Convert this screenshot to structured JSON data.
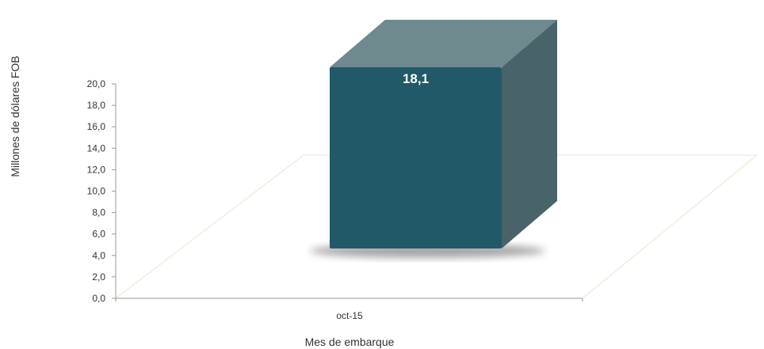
{
  "chart_data": {
    "type": "bar",
    "categories": [
      "oct-15"
    ],
    "series": [
      {
        "values": [
          18.1
        ]
      }
    ],
    "data_labels": [
      "18,1"
    ],
    "ylabel": "Millones de dólares FOB",
    "xlabel": "Mes de embarque",
    "ylim": [
      0,
      20
    ],
    "yticks": [
      "0,0",
      "2,0",
      "4,0",
      "6,0",
      "8,0",
      "10,0",
      "12,0",
      "14,0",
      "16,0",
      "18,0",
      "20,0"
    ],
    "grid": false,
    "legend": "none",
    "style": "3d-column",
    "colors": {
      "bar_front": "#215968",
      "bar_top": "#6f8a8f",
      "bar_side": "#48646a",
      "floor_edge": "#ecebd4"
    }
  }
}
